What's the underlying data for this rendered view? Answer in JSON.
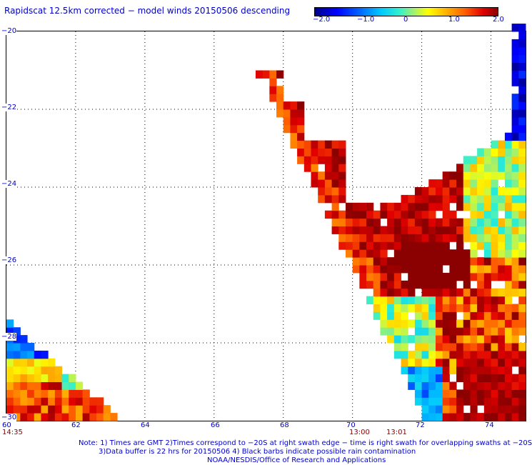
{
  "title": "Rapidscat 12.5km corrected − model winds 20150506 descending",
  "colorbar": {
    "labels": [
      "−2.0",
      "−1.0",
      "0",
      "1.0",
      "2.0"
    ],
    "range": [
      -2.0,
      2.0
    ]
  },
  "axes": {
    "y_labels": [
      "−20",
      "−22",
      "−24",
      "−26",
      "−28",
      "−30"
    ],
    "x_labels": [
      "60",
      "62",
      "64",
      "66",
      "68",
      "70",
      "72",
      "74"
    ],
    "lat_range": [
      -30,
      -20
    ],
    "lon_range": [
      60,
      75
    ]
  },
  "times": [
    "14:35",
    "13:00",
    "13:01"
  ],
  "note": {
    "line1": "Note: 1) Times are GMT 2)Times correspond to −20S at right swath edge − time is right swath for overlapping swaths at −20S",
    "line2": "3)Data buffer is 22 hrs for 20150506 4) Black barbs indicate possible rain contamination",
    "line3": "NOAA/NESDIS/Office of Research and Applications"
  }
}
